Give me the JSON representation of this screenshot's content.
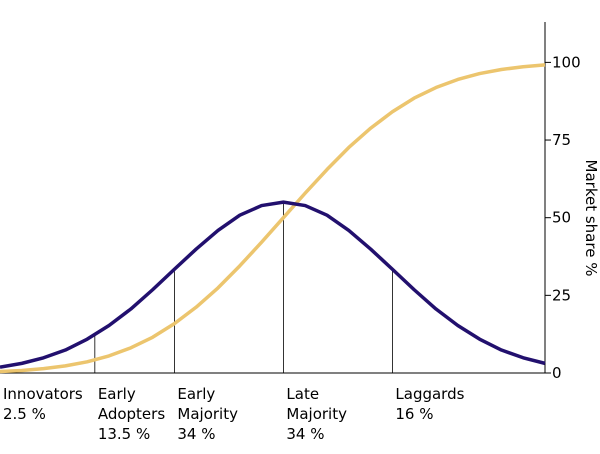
{
  "chart_data": {
    "type": "line",
    "y_label": "Market share %",
    "x": [
      -2.6,
      -2.4,
      -2.2,
      -2.0,
      -1.8,
      -1.6,
      -1.4,
      -1.2,
      -1.0,
      -0.8,
      -0.6,
      -0.4,
      -0.2,
      0,
      0.2,
      0.4,
      0.6,
      0.8,
      1.0,
      1.2,
      1.4,
      1.6,
      1.8,
      2.0,
      2.2,
      2.4
    ],
    "series": [
      {
        "color": "#22106e",
        "values": [
          1.9,
          3.1,
          4.9,
          7.4,
          10.9,
          15.3,
          20.6,
          26.8,
          33.4,
          39.9,
          45.9,
          50.8,
          53.9,
          55,
          53.9,
          50.8,
          45.9,
          39.9,
          33.4,
          26.8,
          20.6,
          15.3,
          10.9,
          7.4,
          4.9,
          3.1
        ]
      },
      {
        "color": "#ecc56e",
        "values": [
          0.5,
          0.8,
          1.4,
          2.3,
          3.6,
          5.5,
          8.1,
          11.5,
          15.9,
          21.2,
          27.4,
          34.5,
          42.1,
          50,
          57.9,
          65.5,
          72.6,
          78.8,
          84.1,
          88.5,
          91.9,
          94.5,
          96.4,
          97.7,
          98.6,
          99.2
        ]
      }
    ],
    "dividers": [
      -1.73,
      -1,
      0,
      1
    ],
    "categories": [
      [
        "Innovators"
      ],
      [
        "Early",
        "Adopters"
      ],
      [
        "Early",
        "Majority"
      ],
      [
        "Late",
        "Majority"
      ],
      [
        "Laggards"
      ]
    ],
    "values": [
      2.5,
      13.5,
      34,
      34,
      16
    ],
    "value_labels": [
      "2.5 %",
      "13.5 %",
      "34 %",
      "34 %",
      "16 %"
    ],
    "xlim": [
      -2.6,
      2.4
    ],
    "ylim": [
      0,
      113
    ],
    "yticks": [
      0,
      25,
      50,
      75,
      100
    ]
  }
}
